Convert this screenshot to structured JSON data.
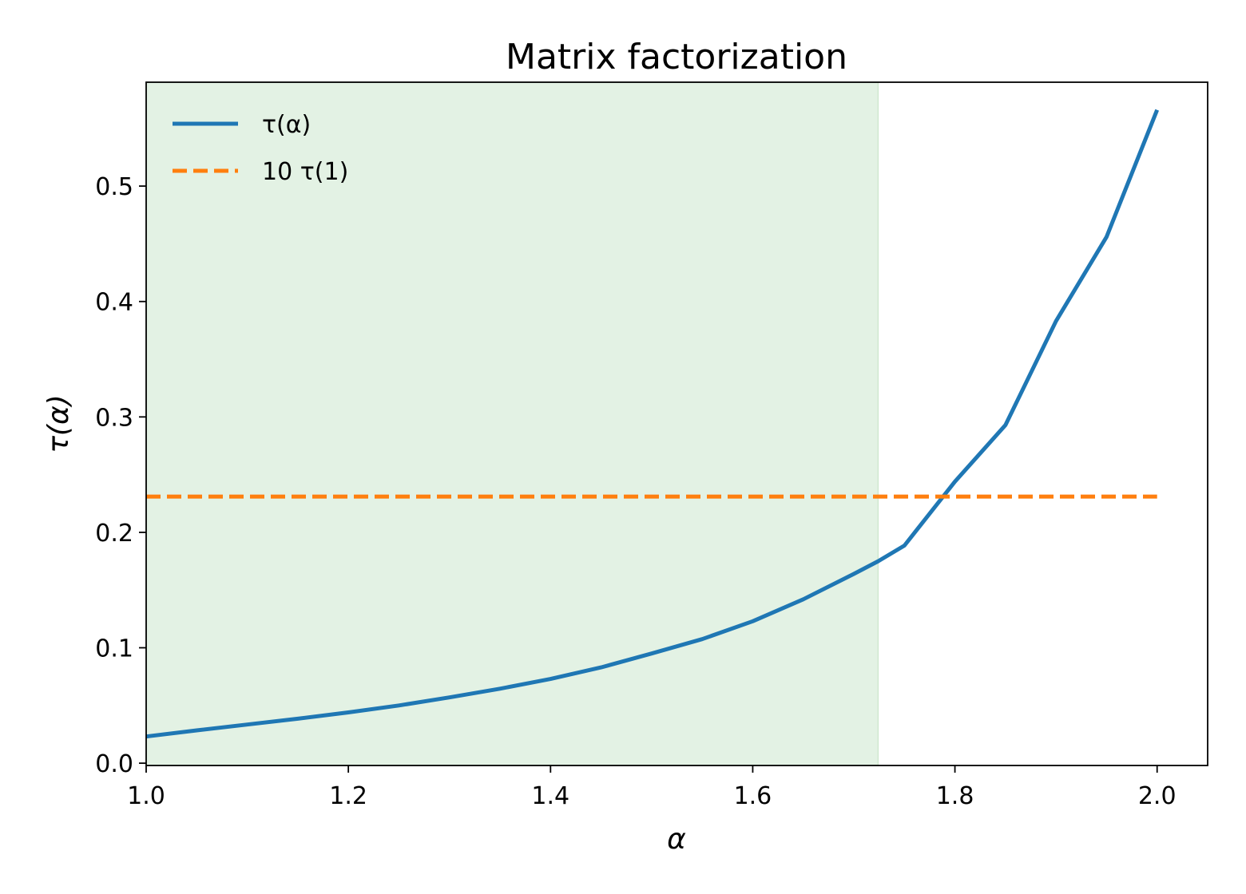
{
  "chart_data": {
    "type": "line",
    "title": "Matrix factorization",
    "xlabel": "α",
    "ylabel": "τ(α)",
    "xlim": [
      1.0,
      2.05
    ],
    "ylim": [
      -0.002,
      0.59
    ],
    "xticks": [
      1.0,
      1.2,
      1.4,
      1.6,
      1.8,
      2.0
    ],
    "xtick_labels": [
      "1.0",
      "1.2",
      "1.4",
      "1.6",
      "1.8",
      "2.0"
    ],
    "yticks": [
      0.0,
      0.1,
      0.2,
      0.3,
      0.4,
      0.5
    ],
    "ytick_labels": [
      "0.0",
      "0.1",
      "0.2",
      "0.3",
      "0.4",
      "0.5"
    ],
    "grid": false,
    "legend_position": "top-left",
    "shaded_region": {
      "x_start": 1.0,
      "x_end": 1.724,
      "color": "#e3f2e4"
    },
    "series": [
      {
        "name": "τ(α)",
        "style": "solid",
        "color": "#1f77b4",
        "x": [
          1.0,
          1.05,
          1.1,
          1.15,
          1.2,
          1.25,
          1.3,
          1.35,
          1.4,
          1.45,
          1.5,
          1.55,
          1.6,
          1.65,
          1.7,
          1.724,
          1.75,
          1.8,
          1.85,
          1.9,
          1.95,
          2.0
        ],
        "y": [
          0.0231,
          0.0284,
          0.0335,
          0.0385,
          0.044,
          0.05,
          0.057,
          0.0645,
          0.073,
          0.083,
          0.095,
          0.1075,
          0.123,
          0.142,
          0.164,
          0.175,
          0.1885,
          0.244,
          0.293,
          0.383,
          0.456,
          0.566
        ]
      },
      {
        "name": "10 τ(1)",
        "style": "dashed",
        "color": "#ff7f0e",
        "x": [
          1.0,
          2.0
        ],
        "y": [
          0.231,
          0.231
        ]
      }
    ]
  }
}
